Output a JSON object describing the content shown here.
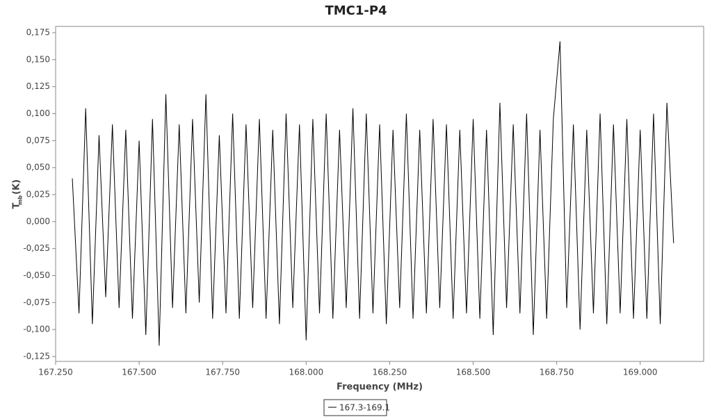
{
  "chart_data": {
    "type": "line",
    "title": "TMC1-P4",
    "x_label": "Frequency (MHz)",
    "y_label": "T",
    "y_label_sub": "mb",
    "y_label_unit": "(K)",
    "xlim": [
      167.25,
      169.19
    ],
    "ylim": [
      -0.1295,
      0.1808
    ],
    "xticks": [
      {
        "value": 167.25,
        "label": "167.250"
      },
      {
        "value": 167.5,
        "label": "167.500"
      },
      {
        "value": 167.75,
        "label": "167.750"
      },
      {
        "value": 168.0,
        "label": "168.000"
      },
      {
        "value": 168.25,
        "label": "168.250"
      },
      {
        "value": 168.5,
        "label": "168.500"
      },
      {
        "value": 168.75,
        "label": "168.750"
      },
      {
        "value": 169.0,
        "label": "169.000"
      }
    ],
    "yticks": [
      {
        "value": -0.125,
        "label": "-0,125"
      },
      {
        "value": -0.1,
        "label": "-0,100"
      },
      {
        "value": -0.075,
        "label": "-0,075"
      },
      {
        "value": -0.05,
        "label": "-0,050"
      },
      {
        "value": -0.025,
        "label": "-0,025"
      },
      {
        "value": 0,
        "label": "0,000"
      },
      {
        "value": 0.025,
        "label": "0,025"
      },
      {
        "value": 0.05,
        "label": "0,050"
      },
      {
        "value": 0.075,
        "label": "0,075"
      },
      {
        "value": 0.1,
        "label": "0,100"
      },
      {
        "value": 0.125,
        "label": "0,125"
      },
      {
        "value": 0.15,
        "label": "0,150"
      },
      {
        "value": 0.175,
        "label": "0,175"
      }
    ],
    "x": [
      167.3,
      167.32,
      167.34,
      167.36,
      167.38,
      167.4,
      167.42,
      167.44,
      167.46,
      167.48,
      167.5,
      167.52,
      167.54,
      167.56,
      167.58,
      167.6,
      167.62,
      167.64,
      167.66,
      167.68,
      167.7,
      167.72,
      167.74,
      167.76,
      167.78,
      167.8,
      167.82,
      167.84,
      167.86,
      167.88,
      167.9,
      167.92,
      167.94,
      167.96,
      167.98,
      168.0,
      168.02,
      168.04,
      168.06,
      168.08,
      168.1,
      168.12,
      168.14,
      168.16,
      168.18,
      168.2,
      168.22,
      168.24,
      168.26,
      168.28,
      168.3,
      168.32,
      168.34,
      168.36,
      168.38,
      168.4,
      168.42,
      168.44,
      168.46,
      168.48,
      168.5,
      168.52,
      168.54,
      168.56,
      168.58,
      168.6,
      168.62,
      168.64,
      168.66,
      168.68,
      168.7,
      168.72,
      168.74,
      168.76,
      168.78,
      168.8,
      168.82,
      168.84,
      168.86,
      168.88,
      168.9,
      168.92,
      168.94,
      168.96,
      168.98,
      169.0,
      169.02,
      169.04,
      169.06,
      169.08,
      169.1
    ],
    "series": [
      {
        "name": "167.3-169.1",
        "color": "#000000",
        "values": [
          0.04,
          -0.085,
          0.105,
          -0.095,
          0.08,
          -0.07,
          0.09,
          -0.08,
          0.085,
          -0.09,
          0.075,
          -0.105,
          0.095,
          -0.115,
          0.118,
          -0.08,
          0.09,
          -0.085,
          0.095,
          -0.075,
          0.118,
          -0.09,
          0.08,
          -0.085,
          0.1,
          -0.09,
          0.09,
          -0.08,
          0.095,
          -0.09,
          0.085,
          -0.095,
          0.1,
          -0.08,
          0.09,
          -0.11,
          0.095,
          -0.085,
          0.1,
          -0.09,
          0.085,
          -0.08,
          0.105,
          -0.09,
          0.1,
          -0.085,
          0.09,
          -0.095,
          0.085,
          -0.08,
          0.1,
          -0.09,
          0.085,
          -0.085,
          0.095,
          -0.08,
          0.09,
          -0.09,
          0.085,
          -0.085,
          0.095,
          -0.09,
          0.085,
          -0.105,
          0.11,
          -0.08,
          0.09,
          -0.085,
          0.1,
          -0.105,
          0.085,
          -0.09,
          0.095,
          0.167,
          -0.08,
          0.09,
          -0.1,
          0.085,
          -0.085,
          0.1,
          -0.095,
          0.09,
          -0.085,
          0.095,
          -0.09,
          0.085,
          -0.09,
          0.1,
          -0.095,
          0.11,
          -0.02
        ]
      }
    ]
  }
}
